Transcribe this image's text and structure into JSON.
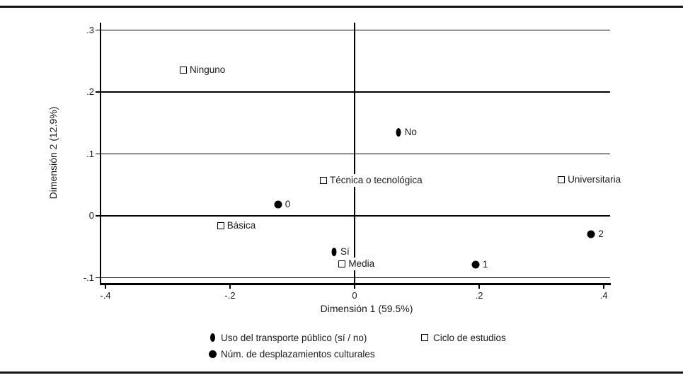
{
  "figure": {
    "background": "#ffffff",
    "rule_color": "#111111",
    "text_color": "#1a1a1a",
    "marker_color": "#000000"
  },
  "chart_data": {
    "type": "scatter",
    "title": "",
    "xlabel": "Dimensión 1 (59.5%)",
    "ylabel": "Dimensión 2 (12.9%)",
    "xlim": [
      -0.41,
      0.41
    ],
    "ylim": [
      -0.115,
      0.31
    ],
    "grid": "horizontal-only",
    "legend_position": "bottom",
    "reference_line_x": 0,
    "xticks": {
      "values": [
        -0.4,
        -0.2,
        0,
        0.2,
        0.4
      ],
      "labels": [
        "-.4",
        "-.2",
        "0",
        ".2",
        ".4"
      ]
    },
    "yticks": {
      "values": [
        0.3,
        0.2,
        0.1,
        0,
        -0.1
      ],
      "labels": [
        ".3",
        ".2",
        ".1",
        "0",
        "-.1"
      ]
    },
    "series": [
      {
        "name": "Uso del transporte público (sí / no)",
        "marker": "ellipse",
        "points": [
          {
            "label": "No",
            "x": 0.07,
            "y": 0.135
          },
          {
            "label": "Sí",
            "x": -0.033,
            "y": -0.058
          }
        ]
      },
      {
        "name": "Ciclo de estudios",
        "marker": "square",
        "points": [
          {
            "label": "Ninguno",
            "x": -0.275,
            "y": 0.236
          },
          {
            "label": "Técnica o tecnológica",
            "x": -0.05,
            "y": 0.057
          },
          {
            "label": "Universitaria",
            "x": 0.332,
            "y": 0.058
          },
          {
            "label": "Básica",
            "x": -0.215,
            "y": -0.016
          },
          {
            "label": "Media",
            "x": -0.02,
            "y": -0.078
          }
        ]
      },
      {
        "name": "Núm. de desplazamientos culturales",
        "marker": "circle",
        "points": [
          {
            "label": "0",
            "x": -0.123,
            "y": 0.018
          },
          {
            "label": "1",
            "x": 0.194,
            "y": -0.079
          },
          {
            "label": "2",
            "x": 0.38,
            "y": -0.03
          }
        ]
      }
    ],
    "legend": {
      "items": [
        {
          "marker": "ellipse",
          "label": "Uso del transporte público (sí / no)"
        },
        {
          "marker": "square",
          "label": "Ciclo de estudios"
        },
        {
          "marker": "circle",
          "label": "Núm. de desplazamientos culturales"
        }
      ],
      "layout_rows": [
        [
          0,
          1
        ],
        [
          2
        ]
      ]
    }
  }
}
